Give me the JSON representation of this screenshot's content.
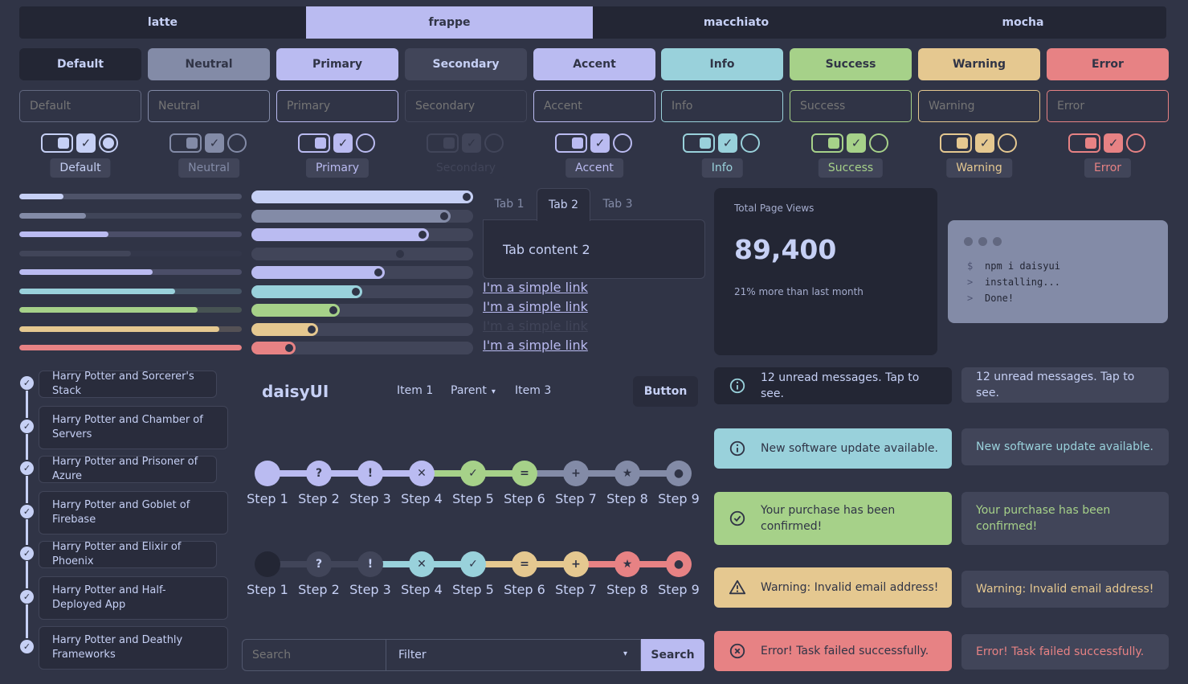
{
  "theme_tabs": [
    "latte",
    "frappe",
    "macchiato",
    "mocha"
  ],
  "buttons": [
    {
      "label": "Default",
      "bg": "#232634",
      "fg": "#c6d0f5"
    },
    {
      "label": "Neutral",
      "bg": "#838ba7",
      "fg": "#303446"
    },
    {
      "label": "Primary",
      "bg": "#babbf1",
      "fg": "#303446"
    },
    {
      "label": "Secondary",
      "bg": "#414559",
      "fg": "#c6d0f5"
    },
    {
      "label": "Accent",
      "bg": "#babbf1",
      "fg": "#303446"
    },
    {
      "label": "Info",
      "bg": "#99d1db",
      "fg": "#303446"
    },
    {
      "label": "Success",
      "bg": "#a6d189",
      "fg": "#303446"
    },
    {
      "label": "Warning",
      "bg": "#e5c890",
      "fg": "#303446"
    },
    {
      "label": "Error",
      "bg": "#e78284",
      "fg": "#303446"
    }
  ],
  "inputs": [
    {
      "placeholder": "Default",
      "color": "#626880"
    },
    {
      "placeholder": "Neutral",
      "color": "#838ba7"
    },
    {
      "placeholder": "Primary",
      "color": "#babbf1"
    },
    {
      "placeholder": "Secondary",
      "color": "#414559"
    },
    {
      "placeholder": "Accent",
      "color": "#babbf1"
    },
    {
      "placeholder": "Info",
      "color": "#99d1db"
    },
    {
      "placeholder": "Success",
      "color": "#a6d189"
    },
    {
      "placeholder": "Warning",
      "color": "#e5c890"
    },
    {
      "placeholder": "Error",
      "color": "#e78284"
    }
  ],
  "controls": [
    {
      "badge": "Default",
      "color": "#c6d0f5",
      "badge_bg": "#414559",
      "badge_fg": "#c6d0f5"
    },
    {
      "badge": "Neutral",
      "color": "#838ba7",
      "badge_bg": "#414559",
      "badge_fg": "#838ba7"
    },
    {
      "badge": "Primary",
      "color": "#babbf1",
      "badge_bg": "#414559",
      "badge_fg": "#babbf1"
    },
    {
      "badge": "Secondary",
      "color": "#414559",
      "badge_bg": "#303446",
      "badge_fg": "#414559"
    },
    {
      "badge": "Accent",
      "color": "#babbf1",
      "badge_bg": "#414559",
      "badge_fg": "#babbf1"
    },
    {
      "badge": "Info",
      "color": "#99d1db",
      "badge_bg": "#414559",
      "badge_fg": "#99d1db"
    },
    {
      "badge": "Success",
      "color": "#a6d189",
      "badge_bg": "#414559",
      "badge_fg": "#a6d189"
    },
    {
      "badge": "Warning",
      "color": "#e5c890",
      "badge_bg": "#414559",
      "badge_fg": "#e5c890"
    },
    {
      "badge": "Error",
      "color": "#e78284",
      "badge_bg": "#414559",
      "badge_fg": "#e78284"
    }
  ],
  "progress": [
    {
      "value": 0.2,
      "color": "#c6d0f5"
    },
    {
      "value": 0.3,
      "color": "#838ba7"
    },
    {
      "value": 0.4,
      "color": "#babbf1"
    },
    {
      "value": 0.5,
      "color": "#414559"
    },
    {
      "value": 0.6,
      "color": "#babbf1"
    },
    {
      "value": 0.7,
      "color": "#99d1db"
    },
    {
      "value": 0.8,
      "color": "#a6d189"
    },
    {
      "value": 0.9,
      "color": "#e5c890"
    },
    {
      "value": 1.0,
      "color": "#e78284"
    }
  ],
  "ranges": [
    {
      "value": 1.0,
      "color": "#c6d0f5"
    },
    {
      "value": 0.9,
      "color": "#838ba7"
    },
    {
      "value": 0.8,
      "color": "#babbf1"
    },
    {
      "value": 0.7,
      "color": "#414559"
    },
    {
      "value": 0.6,
      "color": "#babbf1"
    },
    {
      "value": 0.5,
      "color": "#99d1db"
    },
    {
      "value": 0.4,
      "color": "#a6d189"
    },
    {
      "value": 0.3,
      "color": "#e5c890"
    },
    {
      "value": 0.2,
      "color": "#e78284"
    }
  ],
  "tabs": {
    "items": [
      "Tab 1",
      "Tab 2",
      "Tab 3"
    ],
    "active": 1,
    "content": "Tab content 2"
  },
  "links": [
    "I'm a simple link",
    "I'm a simple link",
    "I'm a simple link",
    "I'm a simple link"
  ],
  "stat": {
    "title": "Total Page Views",
    "value": "89,400",
    "desc": "21% more than last month"
  },
  "code": {
    "lines": [
      {
        "prefix": "$",
        "text": "npm i daisyui"
      },
      {
        "prefix": ">",
        "text": "installing..."
      },
      {
        "prefix": ">",
        "text": "Done!"
      }
    ]
  },
  "timeline": [
    "Harry Potter and Sorcerer's Stack",
    "Harry Potter and Chamber of Servers",
    "Harry Potter and Prisoner of Azure",
    "Harry Potter and Goblet of Firebase",
    "Harry Potter and Elixir of Phoenix",
    "Harry Potter and Half-Deployed App",
    "Harry Potter and Deathly Frameworks"
  ],
  "navbar": {
    "brand": "daisyUI",
    "items": [
      "Item 1",
      "Parent",
      "Item 3"
    ],
    "button": "Button"
  },
  "steps1": [
    {
      "label": "Step 1",
      "icon": "",
      "color": "#babbf1"
    },
    {
      "label": "Step 2",
      "icon": "?",
      "color": "#babbf1"
    },
    {
      "label": "Step 3",
      "icon": "!",
      "color": "#babbf1"
    },
    {
      "label": "Step 4",
      "icon": "✕",
      "color": "#babbf1"
    },
    {
      "label": "Step 5",
      "icon": "✓",
      "color": "#a6d189"
    },
    {
      "label": "Step 6",
      "icon": "=",
      "color": "#a6d189"
    },
    {
      "label": "Step 7",
      "icon": "+",
      "color": "#838ba7"
    },
    {
      "label": "Step 8",
      "icon": "★",
      "color": "#838ba7"
    },
    {
      "label": "Step 9",
      "icon": "●",
      "color": "#838ba7"
    }
  ],
  "steps2": [
    {
      "label": "Step 1",
      "icon": "",
      "color": "#232634"
    },
    {
      "label": "Step 2",
      "icon": "?",
      "color": "#414559"
    },
    {
      "label": "Step 3",
      "icon": "!",
      "color": "#414559"
    },
    {
      "label": "Step 4",
      "icon": "✕",
      "color": "#99d1db"
    },
    {
      "label": "Step 5",
      "icon": "✓",
      "color": "#99d1db"
    },
    {
      "label": "Step 6",
      "icon": "=",
      "color": "#e5c890"
    },
    {
      "label": "Step 7",
      "icon": "+",
      "color": "#e5c890"
    },
    {
      "label": "Step 8",
      "icon": "★",
      "color": "#e78284"
    },
    {
      "label": "Step 9",
      "icon": "●",
      "color": "#e78284"
    }
  ],
  "join": {
    "search_placeholder": "Search",
    "filter_value": "Filter",
    "button": "Search"
  },
  "alerts": [
    {
      "text": "12 unread messages. Tap to see.",
      "bg": "#232634",
      "fg": "#c6d0f5",
      "icon": "info-icon",
      "icon_color": "#99d1db",
      "soft_fg": "#c6d0f5"
    },
    {
      "text": "New software update available.",
      "bg": "#99d1db",
      "fg": "#303446",
      "icon": "info-icon",
      "icon_color": "#303446",
      "soft_fg": "#99d1db"
    },
    {
      "text": "Your purchase has been confirmed!",
      "bg": "#a6d189",
      "fg": "#303446",
      "icon": "check-circle-icon",
      "icon_color": "#303446",
      "soft_fg": "#a6d189"
    },
    {
      "text": "Warning: Invalid email address!",
      "bg": "#e5c890",
      "fg": "#303446",
      "icon": "warning-icon",
      "icon_color": "#303446",
      "soft_fg": "#e5c890"
    },
    {
      "text": "Error! Task failed successfully.",
      "bg": "#e78284",
      "fg": "#303446",
      "icon": "error-circle-icon",
      "icon_color": "#303446",
      "soft_fg": "#e78284"
    }
  ]
}
